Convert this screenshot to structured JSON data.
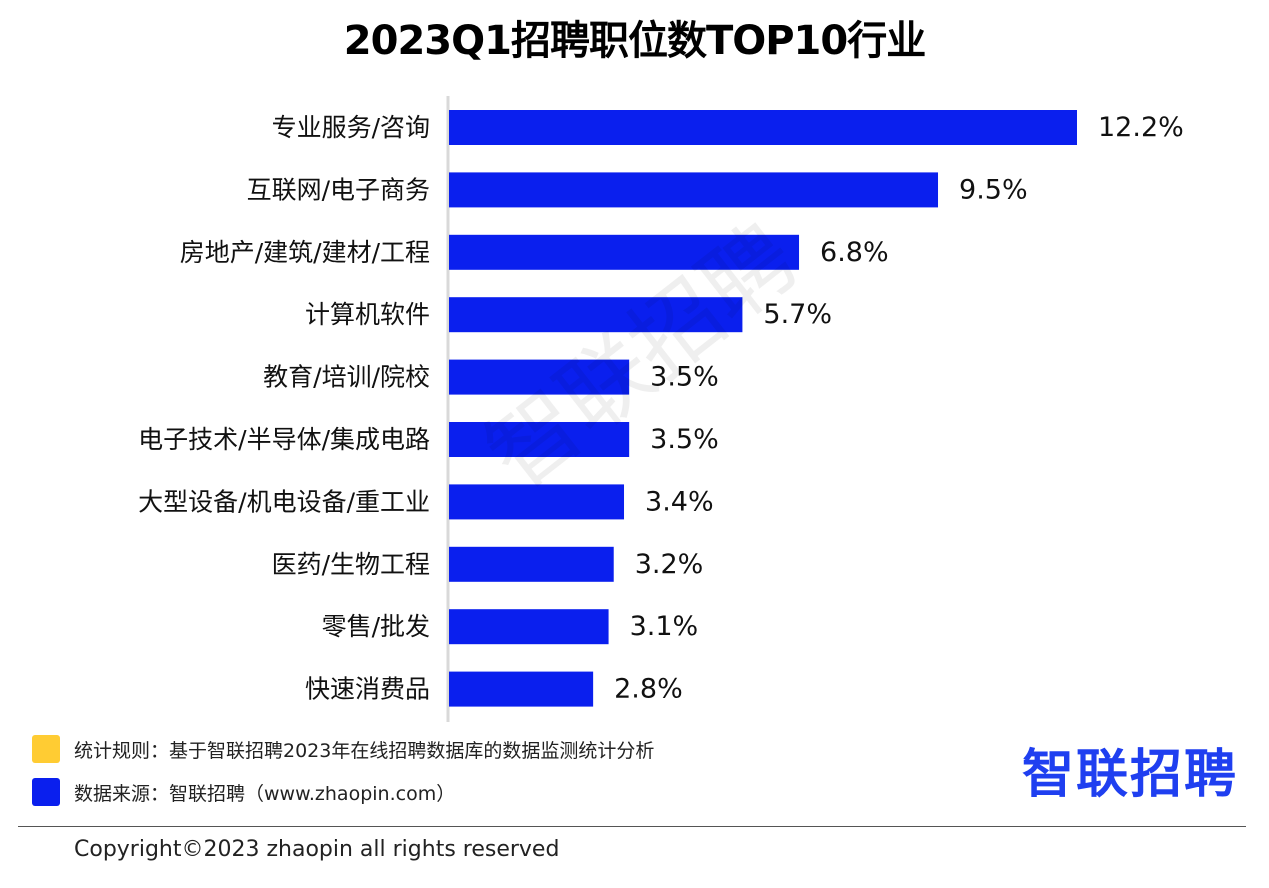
{
  "title": "2023Q1招聘职位数TOP10行业",
  "watermark": "智联招聘",
  "colors": {
    "bar": "#0a1fee",
    "rule_marker": "#ffcc33",
    "source_marker": "#0a1fee",
    "axis": "#d9d9d9"
  },
  "chart_data": {
    "type": "bar",
    "orientation": "horizontal",
    "categories": [
      "专业服务/咨询",
      "互联网/电子商务",
      "房地产/建筑/建材/工程",
      "计算机软件",
      "教育/培训/院校",
      "电子技术/半导体/集成电路",
      "大型设备/机电设备/重工业",
      "医药/生物工程",
      "零售/批发",
      "快速消费品"
    ],
    "values": [
      12.2,
      9.5,
      6.8,
      5.7,
      3.5,
      3.5,
      3.4,
      3.2,
      3.1,
      2.8
    ],
    "value_labels": [
      "12.2%",
      "9.5%",
      "6.8%",
      "5.7%",
      "3.5%",
      "3.5%",
      "3.4%",
      "3.2%",
      "3.1%",
      "2.8%"
    ],
    "title": "2023Q1招聘职位数TOP10行业",
    "xlabel": "",
    "ylabel": "",
    "xlim": [
      0,
      12.2
    ],
    "grid": false
  },
  "notes": {
    "rule": "统计规则：基于智联招聘2023年在线招聘数据库的数据监测统计分析",
    "source": "数据来源：智联招聘（www.zhaopin.com）"
  },
  "logo_text": "智联招聘",
  "copyright": "Copyright©2023 zhaopin all rights reserved"
}
